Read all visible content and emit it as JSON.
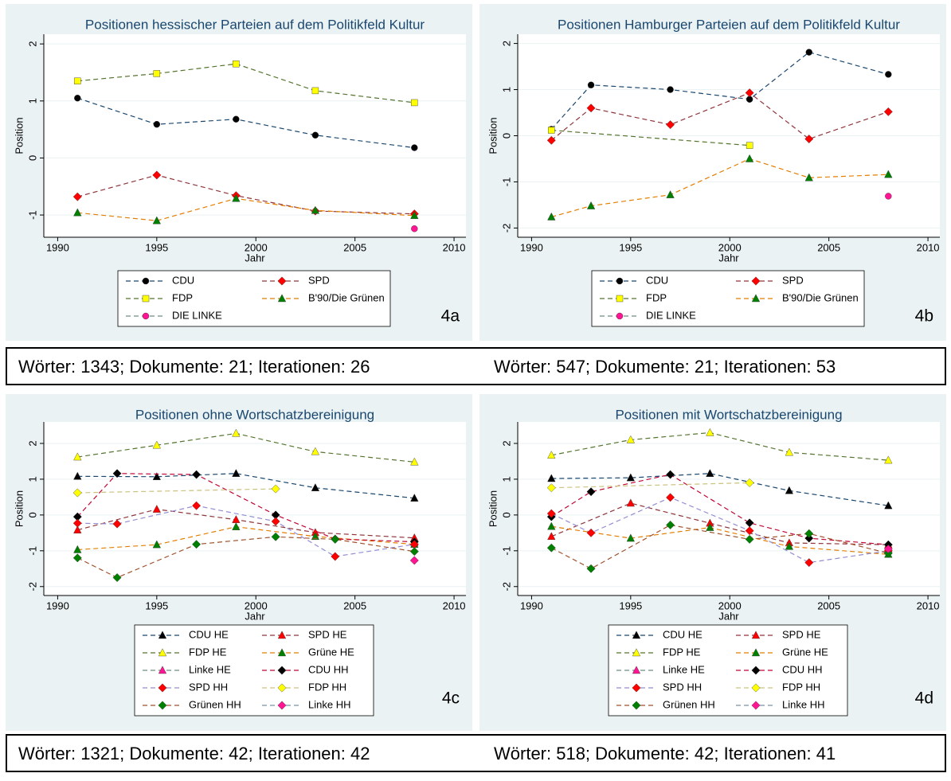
{
  "chart_data": [
    {
      "type": "line",
      "title": "Positionen hessischer Parteien auf dem Politikfeld Kultur",
      "label": "4a",
      "xlabel": "Jahr",
      "ylabel": "Position",
      "xlim": [
        1989.3,
        2010.6
      ],
      "ylim": [
        -1.39,
        2.17
      ],
      "xticks": [
        1990,
        1995,
        2000,
        2005,
        2010
      ],
      "yticks": [
        -1,
        0,
        1,
        2
      ],
      "grid": true,
      "series": [
        {
          "name": "CDU",
          "color": "#1a476f",
          "marker": "circle",
          "marker_color": "#000000",
          "x": [
            1991,
            1995,
            1999,
            2003,
            2008
          ],
          "values": [
            1.05,
            0.59,
            0.68,
            0.4,
            0.18
          ]
        },
        {
          "name": "SPD",
          "color": "#90353b",
          "marker": "diamond",
          "marker_color": "#ff0000",
          "x": [
            1991,
            1995,
            1999,
            2003,
            2008
          ],
          "values": [
            -0.68,
            -0.3,
            -0.66,
            -0.93,
            -0.98
          ]
        },
        {
          "name": "FDP",
          "color": "#55752f",
          "marker": "square",
          "marker_color": "#ffff00",
          "x": [
            1991,
            1995,
            1999,
            2003,
            2008
          ],
          "values": [
            1.35,
            1.48,
            1.65,
            1.18,
            0.97
          ]
        },
        {
          "name": "B'90/Die Grünen",
          "color": "#e37e00",
          "marker": "triangle",
          "marker_color": "#008000",
          "x": [
            1991,
            1995,
            1999,
            2003,
            2008
          ],
          "values": [
            -0.96,
            -1.1,
            -0.71,
            -0.92,
            -1.01
          ]
        },
        {
          "name": "DIE LINKE",
          "color": "#6e8e84",
          "marker": "circle",
          "marker_color": "#ff1493",
          "x": [
            2008
          ],
          "values": [
            -1.24
          ]
        }
      ]
    },
    {
      "type": "line",
      "title": "Positionen Hamburger Parteien auf dem Politikfeld Kultur",
      "label": "4b",
      "xlabel": "Jahr",
      "ylabel": "Position",
      "xlim": [
        1989.3,
        2010.6
      ],
      "ylim": [
        -2.2,
        2.2
      ],
      "xticks": [
        1990,
        1995,
        2000,
        2005,
        2010
      ],
      "yticks": [
        -2,
        -1,
        0,
        1,
        2
      ],
      "grid": true,
      "series": [
        {
          "name": "CDU",
          "color": "#1a476f",
          "marker": "circle",
          "marker_color": "#000000",
          "x": [
            1991,
            1993,
            1997,
            2001,
            2004,
            2008
          ],
          "values": [
            0.14,
            1.1,
            1.0,
            0.79,
            1.81,
            1.33
          ]
        },
        {
          "name": "SPD",
          "color": "#90353b",
          "marker": "diamond",
          "marker_color": "#ff0000",
          "x": [
            1991,
            1993,
            1997,
            2001,
            2004,
            2008
          ],
          "values": [
            -0.1,
            0.6,
            0.24,
            0.93,
            -0.07,
            0.52
          ]
        },
        {
          "name": "FDP",
          "color": "#55752f",
          "marker": "square",
          "marker_color": "#ffff00",
          "x": [
            1991,
            2001
          ],
          "values": [
            0.12,
            -0.21
          ]
        },
        {
          "name": "B'90/Die Grünen",
          "color": "#e37e00",
          "marker": "triangle",
          "marker_color": "#008000",
          "x": [
            1991,
            1993,
            1997,
            2001,
            2004,
            2008
          ],
          "values": [
            -1.76,
            -1.52,
            -1.28,
            -0.5,
            -0.91,
            -0.84
          ]
        },
        {
          "name": "DIE LINKE",
          "color": "#6e8e84",
          "marker": "circle",
          "marker_color": "#ff1493",
          "x": [
            2008
          ],
          "values": [
            -1.31
          ]
        }
      ]
    },
    {
      "type": "line",
      "title": "Positionen ohne Wortschatzbereinigung",
      "label": "4c",
      "xlabel": "Jahr",
      "ylabel": "Position",
      "xlim": [
        1989.3,
        2010.6
      ],
      "ylim": [
        -2.25,
        2.6
      ],
      "xticks": [
        1990,
        1995,
        2000,
        2005,
        2010
      ],
      "yticks": [
        -2,
        -1,
        0,
        1,
        2
      ],
      "grid": true,
      "series": [
        {
          "name": "CDU HE",
          "color": "#1a476f",
          "marker": "triangle",
          "marker_color": "#000000",
          "x": [
            1991,
            1995,
            1999,
            2003,
            2008
          ],
          "values": [
            1.08,
            1.07,
            1.16,
            0.76,
            0.47
          ]
        },
        {
          "name": "SPD HE",
          "color": "#90353b",
          "marker": "triangle",
          "marker_color": "#ff0000",
          "x": [
            1991,
            1995,
            1999,
            2003,
            2008
          ],
          "values": [
            -0.42,
            0.16,
            -0.13,
            -0.49,
            -0.64
          ]
        },
        {
          "name": "FDP HE",
          "color": "#55752f",
          "marker": "triangle",
          "marker_color": "#ffff00",
          "x": [
            1991,
            1995,
            1999,
            2003,
            2008
          ],
          "values": [
            1.62,
            1.95,
            2.28,
            1.77,
            1.48
          ]
        },
        {
          "name": "Grüne HE",
          "color": "#e37e00",
          "marker": "triangle",
          "marker_color": "#008000",
          "x": [
            1991,
            1995,
            1999,
            2003,
            2008
          ],
          "values": [
            -0.97,
            -0.83,
            -0.33,
            -0.6,
            -0.82
          ]
        },
        {
          "name": "Linke HE",
          "color": "#6e8e84",
          "marker": "triangle",
          "marker_color": "#ff1493",
          "x": [
            2008
          ],
          "values": [
            -0.77
          ]
        },
        {
          "name": "CDU HH",
          "color": "#c10534",
          "marker": "diamond",
          "marker_color": "#000000",
          "x": [
            1991,
            1993,
            1997,
            2001,
            2004,
            2008
          ],
          "values": [
            -0.05,
            1.16,
            1.13,
            0.0,
            -0.67,
            -0.75
          ]
        },
        {
          "name": "SPD HH",
          "color": "#938dd2",
          "marker": "diamond",
          "marker_color": "#ff0000",
          "x": [
            1991,
            1993,
            1997,
            2001,
            2004,
            2008
          ],
          "values": [
            -0.23,
            -0.25,
            0.26,
            -0.18,
            -1.16,
            -0.82
          ]
        },
        {
          "name": "FDP HH",
          "color": "#cac27e",
          "marker": "diamond",
          "marker_color": "#ffff00",
          "x": [
            1991,
            2001
          ],
          "values": [
            0.62,
            0.73
          ]
        },
        {
          "name": "Grünen HH",
          "color": "#a0522d",
          "marker": "diamond",
          "marker_color": "#008000",
          "x": [
            1991,
            1993,
            1997,
            2001,
            2004,
            2008
          ],
          "values": [
            -1.2,
            -1.75,
            -0.82,
            -0.61,
            -0.68,
            -1.02
          ]
        },
        {
          "name": "Linke HH",
          "color": "#7b92a8",
          "marker": "diamond",
          "marker_color": "#ff1493",
          "x": [
            2008
          ],
          "values": [
            -1.27
          ]
        }
      ]
    },
    {
      "type": "line",
      "title": "Positionen mit Wortschatzbereinigung",
      "label": "4d",
      "xlabel": "Jahr",
      "ylabel": "Position",
      "xlim": [
        1989.3,
        2010.6
      ],
      "ylim": [
        -2.25,
        2.6
      ],
      "xticks": [
        1990,
        1995,
        2000,
        2005,
        2010
      ],
      "yticks": [
        -2,
        -1,
        0,
        1,
        2
      ],
      "grid": true,
      "series": [
        {
          "name": "CDU HE",
          "color": "#1a476f",
          "marker": "triangle",
          "marker_color": "#000000",
          "x": [
            1991,
            1995,
            1999,
            2003,
            2008
          ],
          "values": [
            1.02,
            1.04,
            1.16,
            0.68,
            0.26
          ]
        },
        {
          "name": "SPD HE",
          "color": "#90353b",
          "marker": "triangle",
          "marker_color": "#ff0000",
          "x": [
            1991,
            1995,
            1999,
            2003,
            2008
          ],
          "values": [
            -0.6,
            0.33,
            -0.23,
            -0.78,
            -0.83
          ]
        },
        {
          "name": "FDP HE",
          "color": "#55752f",
          "marker": "triangle",
          "marker_color": "#ffff00",
          "x": [
            1991,
            1995,
            1999,
            2003,
            2008
          ],
          "values": [
            1.67,
            2.1,
            2.3,
            1.75,
            1.53
          ]
        },
        {
          "name": "Grüne HE",
          "color": "#e37e00",
          "marker": "triangle",
          "marker_color": "#008000",
          "x": [
            1991,
            1995,
            1999,
            2003,
            2008
          ],
          "values": [
            -0.32,
            -0.65,
            -0.35,
            -0.88,
            -1.1
          ]
        },
        {
          "name": "Linke HE",
          "color": "#6e8e84",
          "marker": "triangle",
          "marker_color": "#ff1493",
          "x": [
            2008
          ],
          "values": [
            -0.95
          ]
        },
        {
          "name": "CDU HH",
          "color": "#c10534",
          "marker": "diamond",
          "marker_color": "#000000",
          "x": [
            1991,
            1993,
            1997,
            2001,
            2004,
            2008
          ],
          "values": [
            -0.05,
            0.65,
            1.13,
            -0.22,
            -0.65,
            -0.83
          ]
        },
        {
          "name": "SPD HH",
          "color": "#938dd2",
          "marker": "diamond",
          "marker_color": "#ff0000",
          "x": [
            1991,
            1993,
            1997,
            2001,
            2004,
            2008
          ],
          "values": [
            0.04,
            -0.5,
            0.49,
            -0.44,
            -1.33,
            -1.0
          ]
        },
        {
          "name": "FDP HH",
          "color": "#cac27e",
          "marker": "diamond",
          "marker_color": "#ffff00",
          "x": [
            1991,
            2001
          ],
          "values": [
            0.76,
            0.9
          ]
        },
        {
          "name": "Grünen HH",
          "color": "#a0522d",
          "marker": "diamond",
          "marker_color": "#008000",
          "x": [
            1991,
            1993,
            1997,
            2001,
            2004,
            2008
          ],
          "values": [
            -0.92,
            -1.5,
            -0.28,
            -0.68,
            -0.52,
            -1.07
          ]
        },
        {
          "name": "Linke HH",
          "color": "#7b92a8",
          "marker": "diamond",
          "marker_color": "#ff1493",
          "x": [
            2008
          ],
          "values": [
            -0.95
          ]
        }
      ]
    }
  ],
  "captions": [
    "Wörter: 1343; Dokumente: 21; Iterationen: 26",
    "Wörter: 547; Dokumente: 21; Iterationen: 53",
    "Wörter: 1321; Dokumente: 42; Iterationen: 42",
    "Wörter: 518; Dokumente: 42; Iterationen: 41"
  ]
}
